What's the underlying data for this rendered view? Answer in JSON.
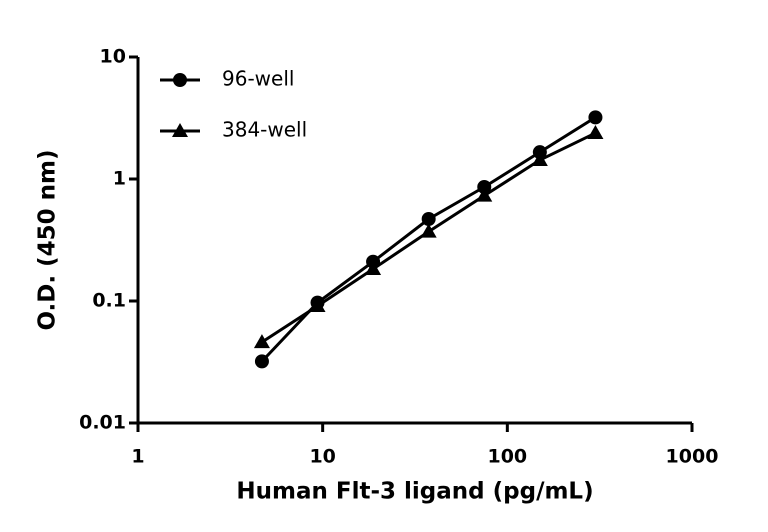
{
  "chart_data": {
    "type": "line",
    "x_label": "Human Flt-3 ligand (pg/mL)",
    "y_label": "O.D. (450 nm)",
    "x_scale": "log",
    "y_scale": "log",
    "xlim": [
      1,
      1000
    ],
    "ylim": [
      0.01,
      10
    ],
    "xticks": [
      1,
      10,
      100,
      1000
    ],
    "yticks": [
      0.01,
      0.1,
      1,
      10
    ],
    "legend": "upper left",
    "x": [
      4.69,
      9.38,
      18.75,
      37.5,
      75,
      150,
      300
    ],
    "series": [
      {
        "name": "96-well",
        "color": "#000000",
        "marker": "circle",
        "values": [
          0.032,
          0.097,
          0.21,
          0.47,
          0.86,
          1.66,
          3.2
        ]
      },
      {
        "name": "384-well",
        "color": "#000000",
        "marker": "triangle",
        "values": [
          0.046,
          0.091,
          0.183,
          0.37,
          0.73,
          1.43,
          2.38
        ]
      }
    ]
  }
}
